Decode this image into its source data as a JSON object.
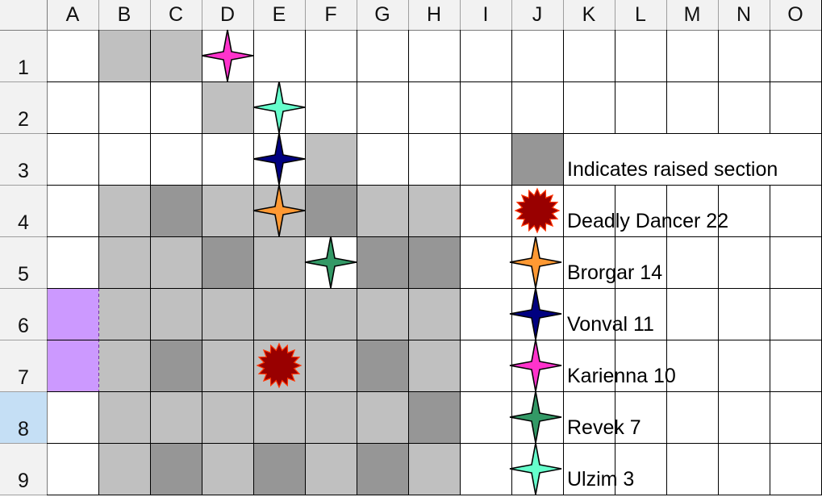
{
  "columns": [
    "A",
    "B",
    "C",
    "D",
    "E",
    "F",
    "G",
    "H",
    "I",
    "J",
    "K",
    "L",
    "M",
    "N",
    "O"
  ],
  "rows": [
    "1",
    "2",
    "3",
    "4",
    "5",
    "6",
    "7",
    "8",
    "9"
  ],
  "selected_row": "8",
  "colors": {
    "raised": "#c0c0c0",
    "raised_dark": "#969696",
    "highlight": "#cc99ff",
    "header_bg": "#f2f2f2",
    "row_selected": "#c5dff5",
    "grid_line": "#000000"
  },
  "map": {
    "raised_light": [
      "B1",
      "C1",
      "D2",
      "F3",
      "B4",
      "D4",
      "E4",
      "G4",
      "H4",
      "B5",
      "C5",
      "E5",
      "B6",
      "C6",
      "D6",
      "E6",
      "F6",
      "G6",
      "H6",
      "B7",
      "D7",
      "E7",
      "F7",
      "H7",
      "B8",
      "C8",
      "D8",
      "E8",
      "F8",
      "G8",
      "B9",
      "D9",
      "F9",
      "H9"
    ],
    "raised_dark": [
      "C4",
      "F4",
      "D5",
      "G5",
      "H5",
      "C7",
      "G7",
      "H8",
      "C9",
      "E9",
      "G9"
    ],
    "highlighted": [
      "A6",
      "A7"
    ],
    "tokens": [
      {
        "cell": "D1",
        "unit": "Karienna",
        "icon": "star-magenta"
      },
      {
        "cell": "E2",
        "unit": "Ulzim",
        "icon": "star-aquamarine"
      },
      {
        "cell": "E3",
        "unit": "Vonval",
        "icon": "star-navy"
      },
      {
        "cell": "E4",
        "unit": "Brorgar",
        "icon": "star-orange"
      },
      {
        "cell": "F5",
        "unit": "Revek",
        "icon": "star-green"
      },
      {
        "cell": "E7",
        "unit": "Deadly Dancer",
        "icon": "burst-red"
      }
    ]
  },
  "legend": {
    "raised_label": "Indicates raised section",
    "entries": [
      {
        "label": "Deadly Dancer 22",
        "icon": "burst-red"
      },
      {
        "label": "Brorgar 14",
        "icon": "star-orange"
      },
      {
        "label": "Vonval 11",
        "icon": "star-navy"
      },
      {
        "label": "Karienna 10",
        "icon": "star-magenta"
      },
      {
        "label": "Revek 7",
        "icon": "star-green"
      },
      {
        "label": "Ulzim 3",
        "icon": "star-aquamarine"
      }
    ]
  },
  "icon_colors": {
    "star-magenta": "#ff33cc",
    "star-aquamarine": "#66ffcc",
    "star-navy": "#000080",
    "star-orange": "#ff9933",
    "star-green": "#339966",
    "burst-red": "#990000"
  }
}
